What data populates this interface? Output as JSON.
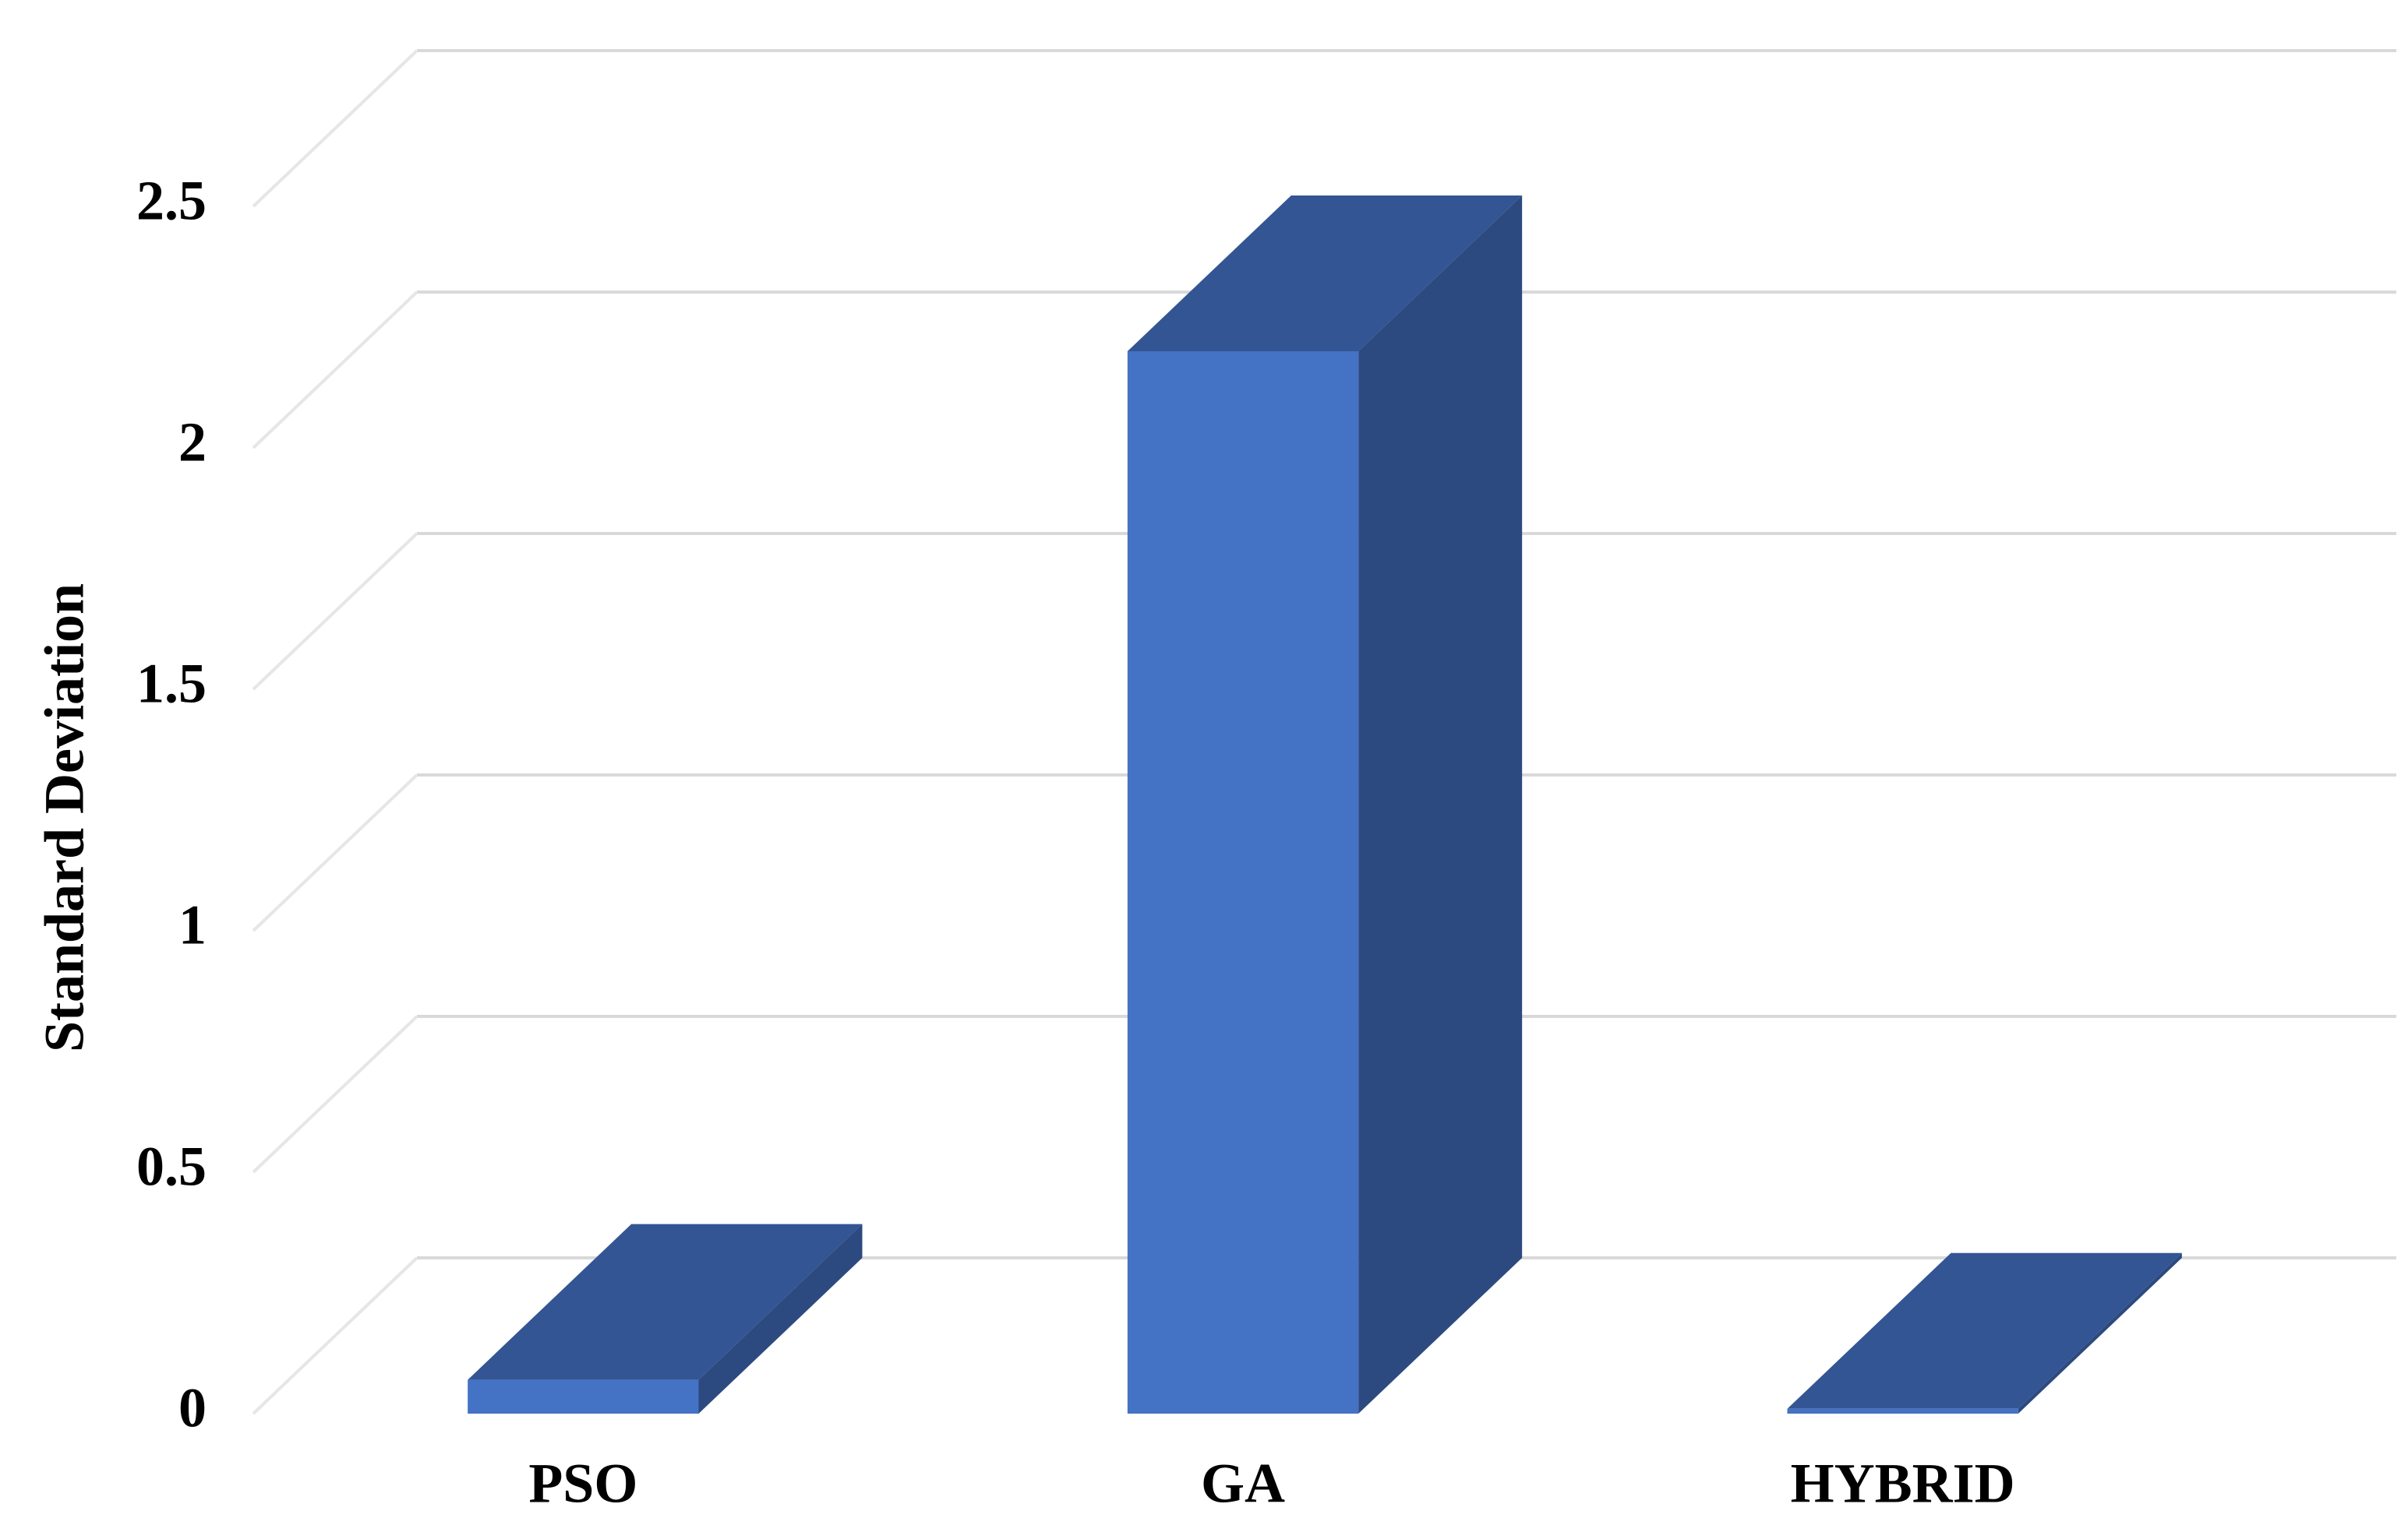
{
  "chart_data": {
    "type": "bar3d",
    "y_label": "Standard Deviation",
    "categories": [
      "PSO",
      "GA",
      "HYBRID"
    ],
    "values": [
      0.07,
      2.2,
      0.01
    ],
    "color": "#4472c4",
    "ylim": [
      0,
      2.5
    ],
    "yticks": [
      0,
      0.5,
      1,
      1.5,
      2,
      2.5
    ],
    "grid": true
  }
}
